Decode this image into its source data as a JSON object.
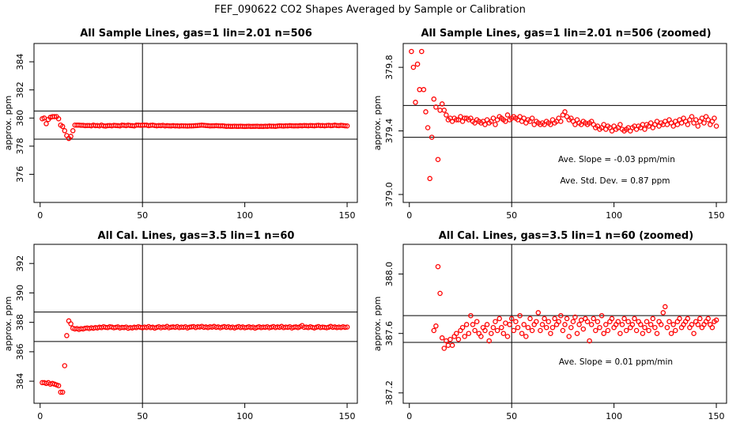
{
  "title": "FEF_090622  CO2 Shapes Averaged by Sample or Calibration",
  "colors": {
    "points": "#ff0000",
    "lines": "#000000",
    "background": "#ffffff"
  },
  "chart_data": [
    {
      "type": "scatter",
      "title": "All Sample Lines, gas=1 lin=2.01 n=506",
      "xlabel": "",
      "ylabel": "approx. ppm",
      "xlim": [
        -3,
        155
      ],
      "ylim": [
        374.0,
        385.3
      ],
      "xticks": [
        0,
        50,
        100,
        150
      ],
      "yticks": [
        376,
        378,
        380,
        382,
        384
      ],
      "hlines": [
        380.5,
        378.5
      ],
      "vline": 50,
      "marker": "open-circle",
      "annotations": [],
      "x": [
        1,
        2,
        3,
        4,
        5,
        6,
        7,
        8,
        9,
        10,
        11,
        12,
        13,
        14,
        15,
        16,
        17,
        18,
        19,
        20,
        21,
        22,
        23,
        24,
        25,
        26,
        27,
        28,
        29,
        30,
        31,
        32,
        33,
        34,
        35,
        36,
        37,
        38,
        39,
        40,
        41,
        42,
        43,
        44,
        45,
        46,
        47,
        48,
        49,
        50,
        51,
        52,
        53,
        54,
        55,
        56,
        57,
        58,
        59,
        60,
        61,
        62,
        63,
        64,
        65,
        66,
        67,
        68,
        69,
        70,
        71,
        72,
        73,
        74,
        75,
        76,
        77,
        78,
        79,
        80,
        81,
        82,
        83,
        84,
        85,
        86,
        87,
        88,
        89,
        90,
        91,
        92,
        93,
        94,
        95,
        96,
        97,
        98,
        99,
        100,
        101,
        102,
        103,
        104,
        105,
        106,
        107,
        108,
        109,
        110,
        111,
        112,
        113,
        114,
        115,
        116,
        117,
        118,
        119,
        120,
        121,
        122,
        123,
        124,
        125,
        126,
        127,
        128,
        129,
        130,
        131,
        132,
        133,
        134,
        135,
        136,
        137,
        138,
        139,
        140,
        141,
        142,
        143,
        144,
        145,
        146,
        147,
        148,
        149,
        150
      ],
      "y": [
        379.95,
        380.0,
        379.6,
        379.9,
        380.05,
        380.1,
        380.1,
        380.1,
        379.95,
        379.5,
        379.4,
        379.1,
        378.75,
        378.55,
        378.7,
        379.1,
        379.5,
        379.5,
        379.5,
        379.48,
        379.48,
        379.46,
        379.47,
        379.47,
        379.45,
        379.49,
        379.46,
        379.47,
        379.44,
        379.5,
        379.45,
        379.43,
        379.46,
        379.47,
        379.45,
        379.48,
        379.47,
        379.46,
        379.44,
        379.49,
        379.48,
        379.46,
        379.5,
        379.47,
        379.46,
        379.44,
        379.49,
        379.5,
        379.48,
        379.49,
        379.5,
        379.5,
        379.46,
        379.48,
        379.49,
        379.47,
        379.45,
        379.47,
        379.46,
        379.48,
        379.44,
        379.46,
        379.45,
        379.44,
        379.46,
        379.44,
        379.45,
        379.43,
        379.45,
        379.44,
        379.44,
        379.43,
        379.44,
        379.44,
        379.45,
        379.46,
        379.47,
        379.48,
        379.49,
        379.48,
        379.47,
        379.46,
        379.44,
        379.45,
        379.45,
        379.46,
        379.45,
        379.44,
        379.45,
        379.43,
        379.41,
        379.42,
        379.41,
        379.41,
        379.42,
        379.41,
        379.41,
        379.42,
        379.41,
        379.4,
        379.41,
        379.42,
        379.4,
        379.41,
        379.41,
        379.42,
        379.4,
        379.41,
        379.4,
        379.42,
        379.41,
        379.43,
        379.42,
        379.42,
        379.41,
        379.43,
        379.45,
        379.44,
        379.43,
        379.45,
        379.44,
        379.46,
        379.45,
        379.44,
        379.45,
        379.44,
        379.46,
        379.45,
        379.47,
        379.46,
        379.45,
        379.47,
        379.46,
        379.45,
        379.47,
        379.48,
        379.46,
        379.47,
        379.45,
        379.47,
        379.48,
        379.46,
        379.47,
        379.49,
        379.47,
        379.46,
        379.48,
        379.47,
        379.45,
        379.44
      ]
    },
    {
      "type": "scatter",
      "title": "All Sample Lines, gas=1 lin=2.01 n=506 (zoomed)",
      "xlabel": "",
      "ylabel": "approx. ppm",
      "xlim": [
        -3,
        155
      ],
      "ylim": [
        378.95,
        379.95
      ],
      "xticks": [
        0,
        50,
        100,
        150
      ],
      "yticks": [
        379.0,
        379.4,
        379.8
      ],
      "hlines": [
        379.56,
        379.36
      ],
      "vline": 50,
      "marker": "open-circle",
      "annotations": [
        "Ave. Slope =  -0.03  ppm/min",
        "Ave. Std. Dev. =  0.87  ppm"
      ],
      "x": [
        1,
        2,
        3,
        4,
        5,
        6,
        7,
        8,
        9,
        10,
        11,
        12,
        13,
        14,
        15,
        16,
        17,
        18,
        19,
        20,
        21,
        22,
        23,
        24,
        25,
        26,
        27,
        28,
        29,
        30,
        31,
        32,
        33,
        34,
        35,
        36,
        37,
        38,
        39,
        40,
        41,
        42,
        43,
        44,
        45,
        46,
        47,
        48,
        49,
        50,
        51,
        52,
        53,
        54,
        55,
        56,
        57,
        58,
        59,
        60,
        61,
        62,
        63,
        64,
        65,
        66,
        67,
        68,
        69,
        70,
        71,
        72,
        73,
        74,
        75,
        76,
        77,
        78,
        79,
        80,
        81,
        82,
        83,
        84,
        85,
        86,
        87,
        88,
        89,
        90,
        91,
        92,
        93,
        94,
        95,
        96,
        97,
        98,
        99,
        100,
        101,
        102,
        103,
        104,
        105,
        106,
        107,
        108,
        109,
        110,
        111,
        112,
        113,
        114,
        115,
        116,
        117,
        118,
        119,
        120,
        121,
        122,
        123,
        124,
        125,
        126,
        127,
        128,
        129,
        130,
        131,
        132,
        133,
        134,
        135,
        136,
        137,
        138,
        139,
        140,
        141,
        142,
        143,
        144,
        145,
        146,
        147,
        148,
        149,
        150
      ],
      "y": [
        379.9,
        379.8,
        379.58,
        379.82,
        379.66,
        379.9,
        379.66,
        379.52,
        379.42,
        379.1,
        379.36,
        379.6,
        379.55,
        379.22,
        379.53,
        379.57,
        379.53,
        379.5,
        379.47,
        379.48,
        379.46,
        379.48,
        379.47,
        379.47,
        379.49,
        379.46,
        379.48,
        379.48,
        379.47,
        379.48,
        379.46,
        379.45,
        379.47,
        379.46,
        379.45,
        379.46,
        379.44,
        379.47,
        379.45,
        379.46,
        379.48,
        379.44,
        379.47,
        379.49,
        379.48,
        379.47,
        379.46,
        379.5,
        379.47,
        379.48,
        379.49,
        379.48,
        379.47,
        379.49,
        379.46,
        379.48,
        379.45,
        379.47,
        379.46,
        379.48,
        379.44,
        379.46,
        379.45,
        379.44,
        379.45,
        379.44,
        379.46,
        379.45,
        379.44,
        379.47,
        379.45,
        379.46,
        379.48,
        379.46,
        379.5,
        379.52,
        379.49,
        379.47,
        379.48,
        379.46,
        379.44,
        379.47,
        379.45,
        379.44,
        379.46,
        379.45,
        379.44,
        379.45,
        379.46,
        379.44,
        379.42,
        379.43,
        379.41,
        379.42,
        379.44,
        379.41,
        379.43,
        379.42,
        379.4,
        379.43,
        379.41,
        379.42,
        379.44,
        379.41,
        379.4,
        379.41,
        379.42,
        379.4,
        379.42,
        379.43,
        379.41,
        379.43,
        379.42,
        379.44,
        379.41,
        379.44,
        379.43,
        379.45,
        379.42,
        379.44,
        379.46,
        379.43,
        379.45,
        379.44,
        379.46,
        379.44,
        379.47,
        379.45,
        379.43,
        379.46,
        379.44,
        379.47,
        379.45,
        379.48,
        379.46,
        379.44,
        379.47,
        379.49,
        379.45,
        379.47,
        379.43,
        379.46,
        379.48,
        379.45,
        379.49,
        379.47,
        379.44,
        379.46,
        379.48,
        379.43
      ]
    },
    {
      "type": "scatter",
      "title": "All Cal. Lines, gas=3.5 lin=1 n=60",
      "xlabel": "",
      "ylabel": "approx. ppm",
      "xlim": [
        -3,
        155
      ],
      "ylim": [
        382.5,
        393.3
      ],
      "xticks": [
        0,
        50,
        100,
        150
      ],
      "yticks": [
        384,
        386,
        388,
        390,
        392
      ],
      "hlines": [
        388.7,
        386.7
      ],
      "vline": 50,
      "marker": "open-circle",
      "annotations": [],
      "x": [
        1,
        2,
        3,
        4,
        5,
        6,
        7,
        8,
        9,
        10,
        11,
        12,
        13,
        14,
        15,
        16,
        17,
        18,
        19,
        20,
        21,
        22,
        23,
        24,
        25,
        26,
        27,
        28,
        29,
        30,
        31,
        32,
        33,
        34,
        35,
        36,
        37,
        38,
        39,
        40,
        41,
        42,
        43,
        44,
        45,
        46,
        47,
        48,
        49,
        50,
        51,
        52,
        53,
        54,
        55,
        56,
        57,
        58,
        59,
        60,
        61,
        62,
        63,
        64,
        65,
        66,
        67,
        68,
        69,
        70,
        71,
        72,
        73,
        74,
        75,
        76,
        77,
        78,
        79,
        80,
        81,
        82,
        83,
        84,
        85,
        86,
        87,
        88,
        89,
        90,
        91,
        92,
        93,
        94,
        95,
        96,
        97,
        98,
        99,
        100,
        101,
        102,
        103,
        104,
        105,
        106,
        107,
        108,
        109,
        110,
        111,
        112,
        113,
        114,
        115,
        116,
        117,
        118,
        119,
        120,
        121,
        122,
        123,
        124,
        125,
        126,
        127,
        128,
        129,
        130,
        131,
        132,
        133,
        134,
        135,
        136,
        137,
        138,
        139,
        140,
        141,
        142,
        143,
        144,
        145,
        146,
        147,
        148,
        149,
        150
      ],
      "y": [
        383.9,
        383.9,
        383.85,
        383.9,
        383.8,
        383.85,
        383.8,
        383.75,
        383.7,
        383.25,
        383.25,
        385.05,
        387.1,
        388.1,
        387.9,
        387.6,
        387.55,
        387.58,
        387.52,
        387.57,
        387.55,
        387.6,
        387.62,
        387.58,
        387.63,
        387.6,
        387.65,
        387.62,
        387.67,
        387.64,
        387.7,
        387.66,
        387.64,
        387.7,
        387.68,
        387.63,
        387.66,
        387.69,
        387.62,
        387.66,
        387.64,
        387.68,
        387.6,
        387.65,
        387.62,
        387.67,
        387.64,
        387.7,
        387.66,
        387.63,
        387.68,
        387.65,
        387.71,
        387.64,
        387.67,
        387.61,
        387.66,
        387.7,
        387.63,
        387.68,
        387.66,
        387.72,
        387.63,
        387.67,
        387.69,
        387.66,
        387.71,
        387.64,
        387.68,
        387.66,
        387.7,
        387.62,
        387.67,
        387.69,
        387.71,
        387.65,
        387.7,
        387.68,
        387.73,
        387.66,
        387.69,
        387.64,
        387.7,
        387.67,
        387.72,
        387.66,
        387.69,
        387.63,
        387.68,
        387.71,
        387.66,
        387.7,
        387.64,
        387.68,
        387.62,
        387.67,
        387.71,
        387.65,
        387.69,
        387.63,
        387.66,
        387.7,
        387.64,
        387.68,
        387.61,
        387.66,
        387.7,
        387.64,
        387.68,
        387.66,
        387.7,
        387.63,
        387.67,
        387.71,
        387.65,
        387.69,
        387.66,
        387.72,
        387.64,
        387.68,
        387.66,
        387.7,
        387.62,
        387.67,
        387.69,
        387.64,
        387.7,
        387.78,
        387.66,
        387.68,
        387.64,
        387.7,
        387.66,
        387.62,
        387.67,
        387.71,
        387.65,
        387.68,
        387.66,
        387.63,
        387.67,
        387.72,
        387.66,
        387.69,
        387.64,
        387.68,
        387.65,
        387.7,
        387.66,
        387.68
      ]
    },
    {
      "type": "scatter",
      "title": "All Cal. Lines, gas=3.5 lin=1 n=60 (zoomed)",
      "xlabel": "",
      "ylabel": "approx. ppm",
      "xlim": [
        -3,
        155
      ],
      "ylim": [
        387.13,
        388.2
      ],
      "xticks": [
        0,
        50,
        100,
        150
      ],
      "yticks": [
        387.2,
        387.6,
        388.0
      ],
      "hlines": [
        387.72,
        387.54
      ],
      "vline": 50,
      "marker": "open-circle",
      "annotations": [
        "Ave. Slope =  0.01  ppm/min"
      ],
      "x": [
        12,
        13,
        14,
        15,
        16,
        17,
        18,
        19,
        20,
        21,
        22,
        23,
        24,
        25,
        26,
        27,
        28,
        29,
        30,
        31,
        32,
        33,
        34,
        35,
        36,
        37,
        38,
        39,
        40,
        41,
        42,
        43,
        44,
        45,
        46,
        47,
        48,
        49,
        50,
        51,
        52,
        53,
        54,
        55,
        56,
        57,
        58,
        59,
        60,
        61,
        62,
        63,
        64,
        65,
        66,
        67,
        68,
        69,
        70,
        71,
        72,
        73,
        74,
        75,
        76,
        77,
        78,
        79,
        80,
        81,
        82,
        83,
        84,
        85,
        86,
        87,
        88,
        89,
        90,
        91,
        92,
        93,
        94,
        95,
        96,
        97,
        98,
        99,
        100,
        101,
        102,
        103,
        104,
        105,
        106,
        107,
        108,
        109,
        110,
        111,
        112,
        113,
        114,
        115,
        116,
        117,
        118,
        119,
        120,
        121,
        122,
        123,
        124,
        125,
        126,
        127,
        128,
        129,
        130,
        131,
        132,
        133,
        134,
        135,
        136,
        137,
        138,
        139,
        140,
        141,
        142,
        143,
        144,
        145,
        146,
        147,
        148,
        149,
        150
      ],
      "y": [
        387.62,
        387.65,
        388.05,
        387.87,
        387.57,
        387.5,
        387.55,
        387.52,
        387.56,
        387.52,
        387.58,
        387.6,
        387.56,
        387.62,
        387.64,
        387.58,
        387.66,
        387.6,
        387.72,
        387.66,
        387.62,
        387.68,
        387.6,
        387.58,
        387.64,
        387.62,
        387.66,
        387.55,
        387.6,
        387.64,
        387.68,
        387.62,
        387.7,
        387.64,
        387.6,
        387.67,
        387.58,
        387.66,
        387.7,
        387.62,
        387.68,
        387.64,
        387.72,
        387.6,
        387.66,
        387.58,
        387.64,
        387.7,
        387.62,
        387.66,
        387.68,
        387.74,
        387.62,
        387.66,
        387.7,
        387.64,
        387.68,
        387.6,
        387.64,
        387.7,
        387.66,
        387.68,
        387.72,
        387.62,
        387.66,
        387.7,
        387.58,
        387.64,
        387.68,
        387.71,
        387.6,
        387.66,
        387.69,
        387.63,
        387.7,
        387.68,
        387.55,
        387.66,
        387.7,
        387.62,
        387.68,
        387.64,
        387.72,
        387.6,
        387.66,
        387.62,
        387.68,
        387.7,
        387.64,
        387.66,
        387.68,
        387.6,
        387.66,
        387.7,
        387.62,
        387.68,
        387.64,
        387.66,
        387.7,
        387.62,
        387.68,
        387.66,
        387.6,
        387.64,
        387.68,
        387.62,
        387.66,
        387.7,
        387.64,
        387.6,
        387.68,
        387.66,
        387.74,
        387.78,
        387.64,
        387.68,
        387.6,
        387.66,
        387.62,
        387.68,
        387.7,
        387.64,
        387.66,
        387.68,
        387.7,
        387.64,
        387.66,
        387.6,
        387.68,
        387.66,
        387.7,
        387.64,
        387.66,
        387.68,
        387.7,
        387.66,
        387.64,
        387.68,
        387.69
      ]
    }
  ]
}
